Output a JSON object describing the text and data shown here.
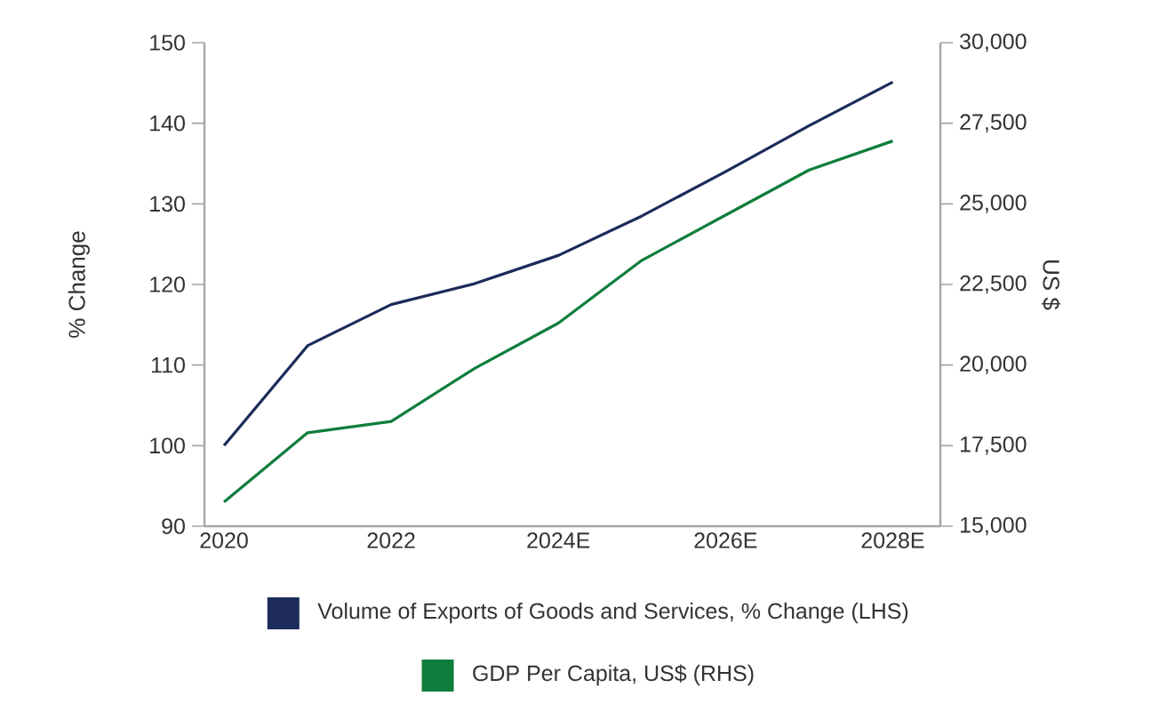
{
  "chart_data": {
    "type": "line",
    "categories": [
      "2020",
      null,
      "2022",
      null,
      "2024E",
      null,
      "2026E",
      null,
      "2028E"
    ],
    "series": [
      {
        "name": "Volume of Exports of Goods and Services, % Change (LHS)",
        "color": "#1c2b5a",
        "values": [
          100,
          112.4,
          117.5,
          120.1,
          123.6,
          128.5,
          134.0,
          139.7,
          145.1
        ]
      },
      {
        "name": "GDP Per Capita, US$ (RHS)",
        "color": "#0f7d3c",
        "axis": "y2",
        "values": [
          15750,
          17900,
          18250,
          19900,
          21300,
          23250,
          24650,
          26050,
          26950
        ]
      }
    ],
    "ylabel": "% Change",
    "y2label": "US $",
    "ylim": [
      90,
      150
    ],
    "yticks": [
      90,
      100,
      110,
      120,
      130,
      140,
      150
    ],
    "y2lim": [
      15000,
      30000
    ],
    "y2ticks": [
      {
        "value": 15000,
        "label": "15,000"
      },
      {
        "value": 17500,
        "label": "17,500"
      },
      {
        "value": 20000,
        "label": "20,000"
      },
      {
        "value": 22500,
        "label": "22,500"
      },
      {
        "value": 25000,
        "label": "25,000"
      },
      {
        "value": 27500,
        "label": "27,500"
      },
      {
        "value": 30000,
        "label": "30,000"
      }
    ],
    "legend": "bottom"
  }
}
